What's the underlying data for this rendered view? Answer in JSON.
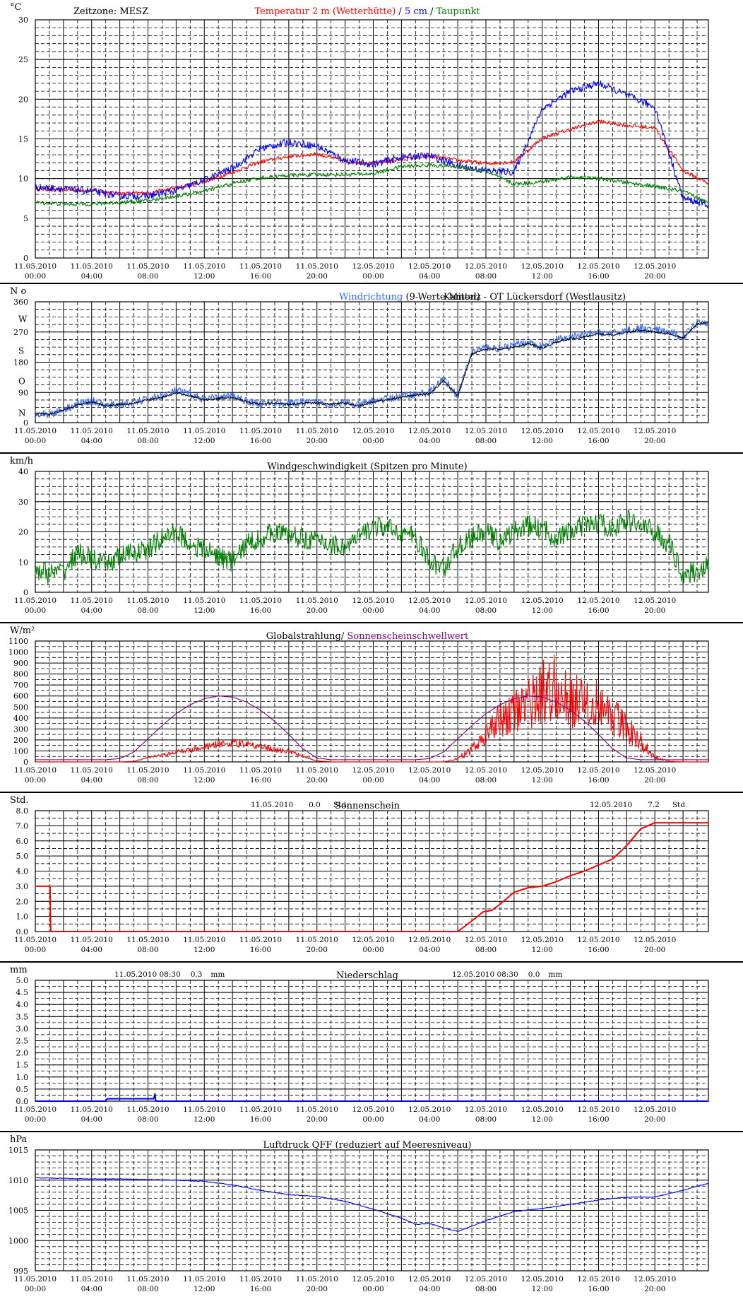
{
  "x_ticks": [
    {
      "date": "11.05.2010",
      "time": "00:00"
    },
    {
      "date": "11.05.2010",
      "time": "04:00"
    },
    {
      "date": "11.05.2010",
      "time": "08:00"
    },
    {
      "date": "11.05.2010",
      "time": "12:00"
    },
    {
      "date": "11.05.2010",
      "time": "16:00"
    },
    {
      "date": "11.05.2010",
      "time": "20:00"
    },
    {
      "date": "12.05.2010",
      "time": "00:00"
    },
    {
      "date": "12.05.2010",
      "time": "04:00"
    },
    {
      "date": "12.05.2010",
      "time": "08:00"
    },
    {
      "date": "12.05.2010",
      "time": "12:00"
    },
    {
      "date": "12.05.2010",
      "time": "16:00"
    },
    {
      "date": "12.05.2010",
      "time": "20:00"
    }
  ],
  "colors": {
    "red": "#ff0000",
    "blue": "#0000ff",
    "green": "#008000",
    "purple": "#800080",
    "lightblue": "#3366ff",
    "black": "#000000"
  },
  "chart_data": [
    {
      "id": "temp",
      "type": "line",
      "unit": "°C",
      "timezone": "Zeitzone: MESZ",
      "title_parts": [
        {
          "text": "Temperatur 2 m (Wetterhütte)",
          "color": "#ff0000"
        },
        {
          "text": "  /  ",
          "color": "#000000"
        },
        {
          "text": "5 cm",
          "color": "#0000ff"
        },
        {
          "text": " / ",
          "color": "#000000"
        },
        {
          "text": "Taupunkt",
          "color": "#008000"
        }
      ],
      "ylim": [
        0,
        30
      ],
      "y_ticks": [
        0,
        5,
        10,
        15,
        20,
        25,
        30
      ],
      "x_hours": [
        0,
        2,
        4,
        6,
        8,
        10,
        12,
        14,
        16,
        18,
        20,
        22,
        24,
        26,
        28,
        30,
        32,
        34,
        36,
        38,
        40,
        42,
        44,
        46,
        47.8
      ],
      "series": [
        {
          "name": "Temperatur 2 m (Wetterhütte)",
          "color": "#ff0000",
          "values": [
            8.7,
            8.6,
            8.5,
            8.1,
            8.2,
            8.8,
            9.6,
            10.8,
            12.1,
            12.8,
            13.1,
            12.2,
            11.9,
            12.4,
            12.8,
            12.3,
            11.9,
            12.1,
            15.1,
            16.2,
            17.2,
            16.7,
            16.4,
            11.0,
            9.4
          ]
        },
        {
          "name": "5 cm",
          "color": "#0000ff",
          "values": [
            8.9,
            8.7,
            8.4,
            7.8,
            7.8,
            8.5,
            9.8,
            11.3,
            13.8,
            14.6,
            14.1,
            12.3,
            11.8,
            12.7,
            12.9,
            11.6,
            11.0,
            10.8,
            18.8,
            21.0,
            22.0,
            20.5,
            19.0,
            7.5,
            6.7
          ]
        },
        {
          "name": "Taupunkt",
          "color": "#008000",
          "values": [
            7.0,
            6.8,
            6.8,
            7.0,
            7.2,
            7.8,
            8.4,
            9.4,
            10.1,
            10.4,
            10.5,
            10.5,
            10.6,
            11.5,
            11.7,
            11.5,
            10.9,
            9.3,
            9.6,
            10.2,
            10.0,
            9.5,
            9.0,
            8.4,
            6.9
          ]
        }
      ]
    },
    {
      "id": "wdir",
      "type": "line",
      "unit": "N o",
      "title_parts": [
        {
          "text": "Windrichtung",
          "color": "#3366ff"
        },
        {
          "text": " (9-Werte-Mittel)",
          "color": "#000000"
        }
      ],
      "subtitle": "Kamenz - OT Lückersdorf (Westlausitz)",
      "ylim": [
        0,
        360
      ],
      "y_ticks": [
        0,
        90,
        180,
        270,
        360
      ],
      "compass_labels": [
        {
          "v": 20,
          "t": "N"
        },
        {
          "v": 115,
          "t": "O"
        },
        {
          "v": 205,
          "t": "S"
        },
        {
          "v": 300,
          "t": "W"
        }
      ],
      "x_hours": [
        0,
        1,
        2,
        3,
        4,
        5,
        6,
        7,
        8,
        9,
        10,
        11,
        12,
        13,
        14,
        15,
        16,
        17,
        18,
        19,
        20,
        21,
        22,
        23,
        24,
        25,
        26,
        27,
        28,
        29,
        30,
        31,
        32,
        33,
        34,
        35,
        36,
        37,
        38,
        39,
        40,
        41,
        42,
        43,
        44,
        45,
        46,
        47,
        47.8
      ],
      "series": [
        {
          "name": "Windrichtung",
          "color": "#3366ff",
          "values": [
            30,
            25,
            40,
            55,
            65,
            50,
            55,
            60,
            70,
            80,
            95,
            85,
            70,
            75,
            80,
            65,
            55,
            60,
            55,
            60,
            60,
            55,
            60,
            50,
            65,
            70,
            80,
            85,
            90,
            130,
            80,
            210,
            225,
            220,
            230,
            240,
            225,
            245,
            255,
            260,
            270,
            265,
            275,
            280,
            275,
            270,
            255,
            300,
            300
          ]
        },
        {
          "name": "9-Werte-Mittel",
          "color": "#000000",
          "values": [
            28,
            25,
            38,
            52,
            62,
            50,
            55,
            58,
            68,
            75,
            88,
            80,
            68,
            72,
            76,
            62,
            55,
            58,
            55,
            58,
            58,
            55,
            58,
            50,
            62,
            68,
            76,
            82,
            86,
            125,
            80,
            205,
            220,
            218,
            226,
            235,
            222,
            240,
            250,
            255,
            265,
            260,
            270,
            275,
            270,
            265,
            252,
            295,
            298
          ]
        }
      ]
    },
    {
      "id": "wspd",
      "type": "line",
      "unit": "km/h",
      "title_parts": [
        {
          "text": "Windgeschwindigkeit (Spitzen pro Minute)",
          "color": "#000000"
        }
      ],
      "ylim": [
        0,
        40
      ],
      "y_ticks": [
        0,
        10,
        20,
        30,
        40
      ],
      "x_hours": [
        0,
        1,
        2,
        3,
        4,
        5,
        6,
        7,
        8,
        9,
        10,
        11,
        12,
        13,
        14,
        15,
        16,
        17,
        18,
        19,
        20,
        21,
        22,
        23,
        24,
        25,
        26,
        27,
        28,
        29,
        30,
        31,
        32,
        33,
        34,
        35,
        36,
        37,
        38,
        39,
        40,
        41,
        42,
        43,
        44,
        45,
        46,
        47,
        47.8
      ],
      "series": [
        {
          "name": "Windgeschwindigkeit",
          "color": "#008000",
          "values": [
            8,
            6,
            7,
            13,
            11,
            9,
            12,
            13,
            14,
            18,
            20,
            16,
            14,
            12,
            10,
            16,
            18,
            20,
            19,
            18,
            17,
            16,
            15,
            18,
            22,
            21,
            20,
            18,
            10,
            8,
            15,
            18,
            20,
            17,
            20,
            22,
            21,
            18,
            20,
            22,
            23,
            21,
            24,
            22,
            20,
            16,
            6,
            7,
            9
          ]
        }
      ]
    },
    {
      "id": "rad",
      "type": "line",
      "unit": "W/m²",
      "title_parts": [
        {
          "text": "Globalstrahlung/ ",
          "color": "#000000"
        },
        {
          "text": "Sonnenscheinschwellwert",
          "color": "#800080"
        }
      ],
      "ylim": [
        0,
        1100
      ],
      "y_ticks": [
        0,
        100,
        200,
        300,
        400,
        500,
        600,
        700,
        800,
        900,
        1000,
        1100
      ],
      "x_hours": [
        0,
        1,
        2,
        3,
        4,
        5,
        6,
        7,
        8,
        9,
        10,
        11,
        12,
        13,
        14,
        15,
        16,
        17,
        18,
        19,
        20,
        21,
        22,
        23,
        24,
        25,
        26,
        27,
        28,
        29,
        30,
        31,
        32,
        33,
        34,
        35,
        36,
        37,
        38,
        39,
        40,
        41,
        42,
        43,
        44,
        45,
        46,
        47,
        47.8
      ],
      "series": [
        {
          "name": "Globalstrahlung",
          "color": "#ff0000",
          "values": [
            0,
            0,
            0,
            0,
            0,
            0,
            0,
            5,
            40,
            60,
            90,
            110,
            140,
            160,
            170,
            160,
            140,
            110,
            100,
            50,
            10,
            0,
            0,
            0,
            0,
            0,
            0,
            0,
            0,
            0,
            30,
            110,
            250,
            400,
            470,
            520,
            640,
            700,
            560,
            580,
            520,
            420,
            320,
            180,
            40,
            5,
            0,
            0,
            0
          ]
        },
        {
          "name": "Sonnenscheinschwellwert",
          "color": "#800080",
          "values": [
            20,
            20,
            20,
            20,
            20,
            20,
            30,
            90,
            210,
            330,
            440,
            520,
            575,
            600,
            590,
            545,
            470,
            370,
            250,
            120,
            35,
            20,
            20,
            20,
            20,
            20,
            20,
            20,
            30,
            90,
            210,
            330,
            440,
            520,
            575,
            600,
            590,
            545,
            470,
            370,
            250,
            120,
            35,
            20,
            20,
            20,
            20,
            20,
            20
          ]
        }
      ]
    },
    {
      "id": "sun",
      "type": "line",
      "unit": "Std.",
      "title_parts": [
        {
          "text": "Sonnenschein",
          "color": "#000000"
        }
      ],
      "day1": {
        "date": "11.05.2010",
        "value": "0.0",
        "unit": "Std."
      },
      "day2": {
        "date": "12.05.2010",
        "value": "7.2",
        "unit": "Std."
      },
      "ylim": [
        0,
        8
      ],
      "y_ticks": [
        0.0,
        1.0,
        2.0,
        3.0,
        4.0,
        5.0,
        6.0,
        7.0,
        8.0
      ],
      "x_hours": [
        0,
        1.05,
        1.1,
        30,
        31,
        31.8,
        32.4,
        33,
        34,
        35,
        36,
        37,
        38,
        39,
        40,
        41,
        42,
        43,
        44,
        47.8
      ],
      "series": [
        {
          "name": "Sonnenschein",
          "color": "#ff0000",
          "values": [
            3.0,
            3.0,
            0.0,
            0.0,
            0.7,
            1.3,
            1.4,
            1.8,
            2.6,
            2.9,
            3.0,
            3.3,
            3.7,
            4.0,
            4.4,
            4.8,
            5.7,
            6.8,
            7.2,
            7.2
          ]
        }
      ]
    },
    {
      "id": "rain",
      "type": "line",
      "unit": "mm",
      "title_parts": [
        {
          "text": "Niederschlag",
          "color": "#000000"
        }
      ],
      "day1": {
        "date": "11.05.2010 08:30",
        "value": "0.3",
        "unit": "mm"
      },
      "day2": {
        "date": "12.05.2010 08:30",
        "value": "0.0",
        "unit": "mm"
      },
      "ylim": [
        0,
        5
      ],
      "y_ticks": [
        0.0,
        0.5,
        1.0,
        1.5,
        2.0,
        2.5,
        3.0,
        3.5,
        4.0,
        4.5,
        5.0
      ],
      "x_hours": [
        0,
        5.0,
        5.1,
        8.4,
        8.5,
        8.55,
        47.8
      ],
      "series": [
        {
          "name": "Niederschlag",
          "color": "#0000ff",
          "values": [
            0,
            0,
            0.1,
            0.1,
            0.3,
            0,
            0
          ]
        }
      ]
    },
    {
      "id": "press",
      "type": "line",
      "unit": "hPa",
      "title_parts": [
        {
          "text": "Luftdruck QFF (reduziert auf Meeresniveau)",
          "color": "#000000"
        }
      ],
      "ylim": [
        995,
        1015
      ],
      "y_ticks": [
        995,
        1000,
        1005,
        1010,
        1015
      ],
      "x_hours": [
        0,
        2,
        4,
        6,
        8,
        10,
        12,
        14,
        16,
        18,
        20,
        22,
        24,
        26,
        27,
        28,
        28.5,
        29,
        30,
        32,
        34,
        36,
        38,
        40,
        42,
        44,
        46,
        47.8
      ],
      "series": [
        {
          "name": "Luftdruck QFF",
          "color": "#0000ff",
          "values": [
            1010.4,
            1010.3,
            1010.2,
            1010.2,
            1010.1,
            1010.0,
            1009.8,
            1009.2,
            1008.3,
            1007.6,
            1007.3,
            1006.5,
            1005.2,
            1003.7,
            1002.7,
            1002.8,
            1002.5,
            1002.1,
            1001.5,
            1003.3,
            1004.8,
            1005.3,
            1006.0,
            1006.7,
            1007.2,
            1007.2,
            1008.3,
            1009.5
          ]
        }
      ]
    }
  ]
}
